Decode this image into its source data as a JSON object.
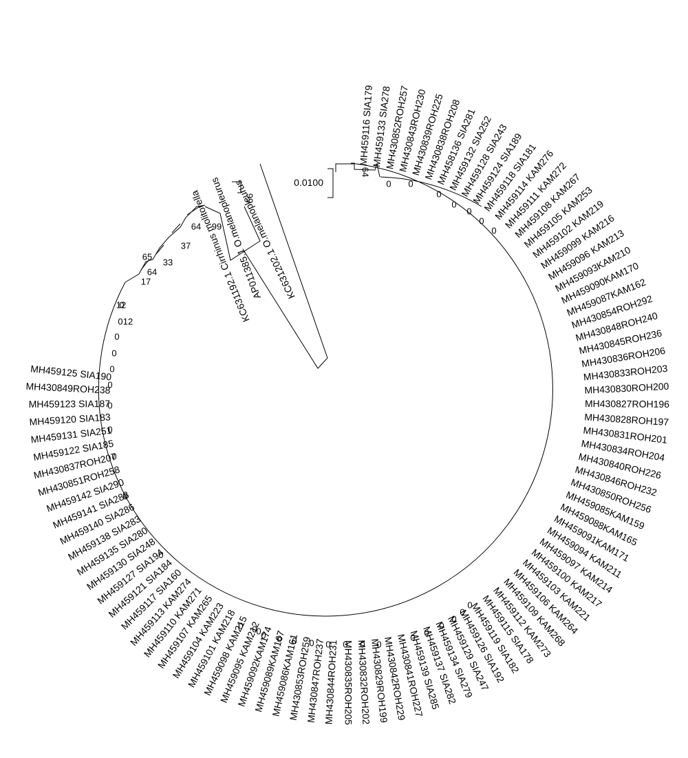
{
  "scale_bar": {
    "label": "0.0100"
  },
  "leaves": [
    "MH459116 SIA179",
    "MH459133 SIA278",
    "MH430852ROH257",
    "MH430843ROH230",
    "MH430839ROH225",
    "MH430838ROH208",
    "MH458136 SIA281",
    "MH459132 SIA252",
    "MH459128 SIA243",
    "MH459124 SIA189",
    "MH459118 SIA181",
    "MH459114 KAM276",
    "MH459111 KAM272",
    "MH459108 KAM267",
    "MH459105 KAM253",
    "MH459102 KAM219",
    "MH459099 KAM216",
    "MH459096 KAM213",
    "MH459093KAM210",
    "MH459090KAM170",
    "MH459087KAM162",
    "MH430854ROH292",
    "MH430848ROH240",
    "MH430845ROH236",
    "MH430836ROH206",
    "MH430833ROH203",
    "MH430830ROH200",
    "MH430827ROH196",
    "MH430828ROH197",
    "MH430831ROH201",
    "MH430834ROH204",
    "MH430840ROH226",
    "MH430846ROH232",
    "MH430850ROH256",
    "MH459085KAM159",
    "MH459088KAM165",
    "MH459091KAM171",
    "MH459094 KAM211",
    "MH459097 KAM214",
    "MH459100 KAM217",
    "MH459103 KAM221",
    "MH459106 KAM264",
    "MH459109 KAM268",
    "MH459112 KAM273",
    "MH459115 SIA178",
    "MH459119 SIA182",
    "MH459126 SIA192",
    "MH459129 SIA247",
    "MH459134 SIA279",
    "MH459137 SIA282",
    "MH459139 SIA285",
    "MH430841ROH227",
    "MH430842ROH229",
    "MH430829ROH199",
    "MH430832ROH202",
    "MH430835ROH205",
    "MH430844ROH231",
    "MH430847ROH237",
    "MH430853ROH259",
    "MH459086KAM161",
    "MH459089KAM167",
    "MH459092KAM174",
    "MH459095 KAM212",
    "MH459098 KAM215",
    "MH459101 KAM218",
    "MH459104 KAM223",
    "MH459107 KAM265",
    "MH459110 KAM271",
    "MH459113 KAM274",
    "MH459117 SIA160",
    "MH459121 SIA184",
    "MH459127 SIA194",
    "MH459130 SIA248",
    "MH459135 SIA280",
    "MH459138 SIA283",
    "MH459140 SIA286",
    "MH459141 SIA288",
    "MH459142 SIA290",
    "MH430851ROH258",
    "MH430837ROH207",
    "MH459122 SIA185",
    "MH459131 SIA251",
    "MH459120 SIA183",
    "MH459123 SIA187",
    "MH430849ROH238",
    "MH459125 SIA190",
    "KC631202.1 O.melanopleurus",
    "AP011385.1 O.melanopleurus",
    "KC631192.1 Cirrhinus molitorella"
  ],
  "bootstrap_values": [
    "64",
    "0",
    "0",
    "0",
    "0",
    "0",
    "0",
    "0",
    "0",
    "0",
    "0",
    "0",
    "0",
    "0",
    "0",
    "0",
    "0",
    "0",
    "0",
    "0",
    "0",
    "0",
    "0",
    "0",
    "0",
    "0",
    "0",
    "0",
    "0",
    "0",
    "0",
    "0",
    "0",
    "0",
    "0",
    "0",
    "12",
    "12",
    "17",
    "64",
    "65",
    "33",
    "37",
    "64",
    "99",
    "99"
  ]
}
